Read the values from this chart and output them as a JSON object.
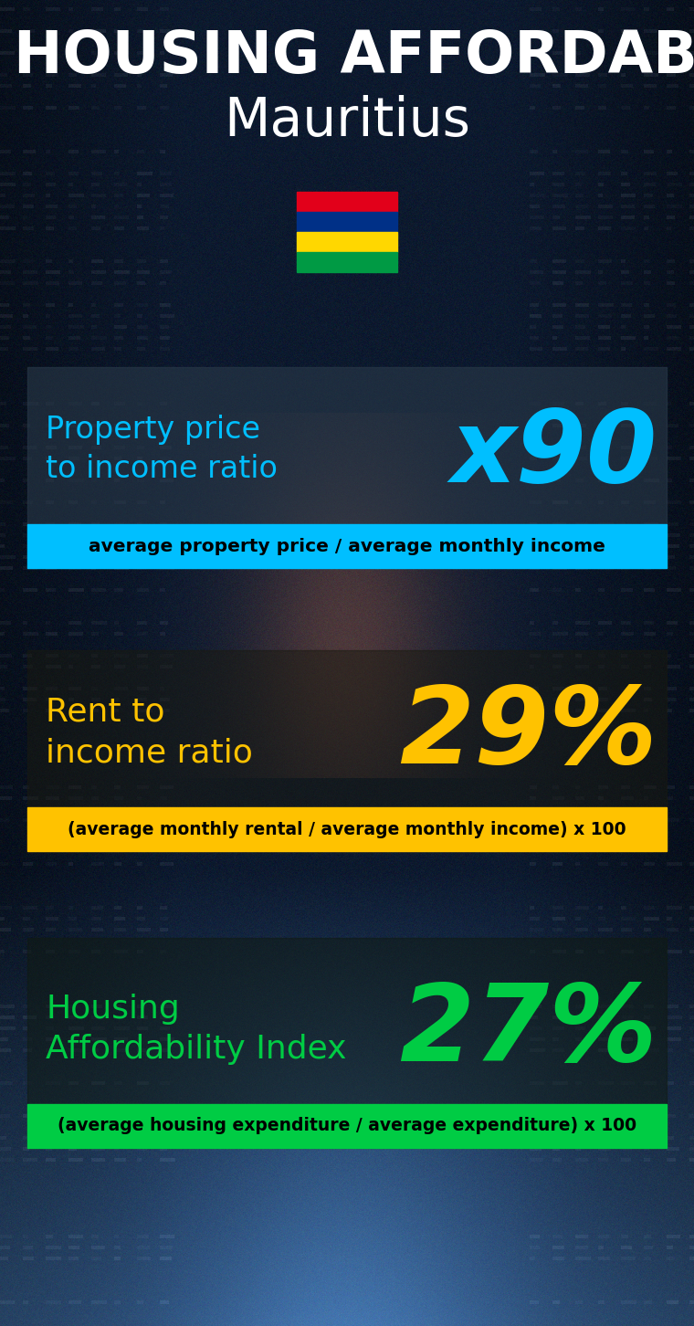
{
  "title_line1": "HOUSING AFFORDABILITY",
  "title_line2": "Mauritius",
  "bg_color": "#0d1b2a",
  "section1_label": "Property price\nto income ratio",
  "section1_value": "x90",
  "section1_label_color": "#00bfff",
  "section1_value_color": "#00bfff",
  "section1_banner_text": "average property price / average monthly income",
  "section1_banner_bg": "#00bfff",
  "section1_banner_text_color": "#000000",
  "section2_label": "Rent to\nincome ratio",
  "section2_value": "29%",
  "section2_label_color": "#ffc200",
  "section2_value_color": "#ffc200",
  "section2_banner_text": "(average monthly rental / average monthly income) x 100",
  "section2_banner_bg": "#ffc200",
  "section2_banner_text_color": "#000000",
  "section3_label": "Housing\nAffordability Index",
  "section3_value": "27%",
  "section3_label_color": "#00cc44",
  "section3_value_color": "#00cc44",
  "section3_banner_text": "(average housing expenditure / average expenditure) x 100",
  "section3_banner_bg": "#00cc44",
  "section3_banner_text_color": "#000000",
  "flag_colors": [
    "#e2001a",
    "#003087",
    "#ffd700",
    "#009a44"
  ],
  "fig_width": 7.6,
  "fig_height": 14.52
}
